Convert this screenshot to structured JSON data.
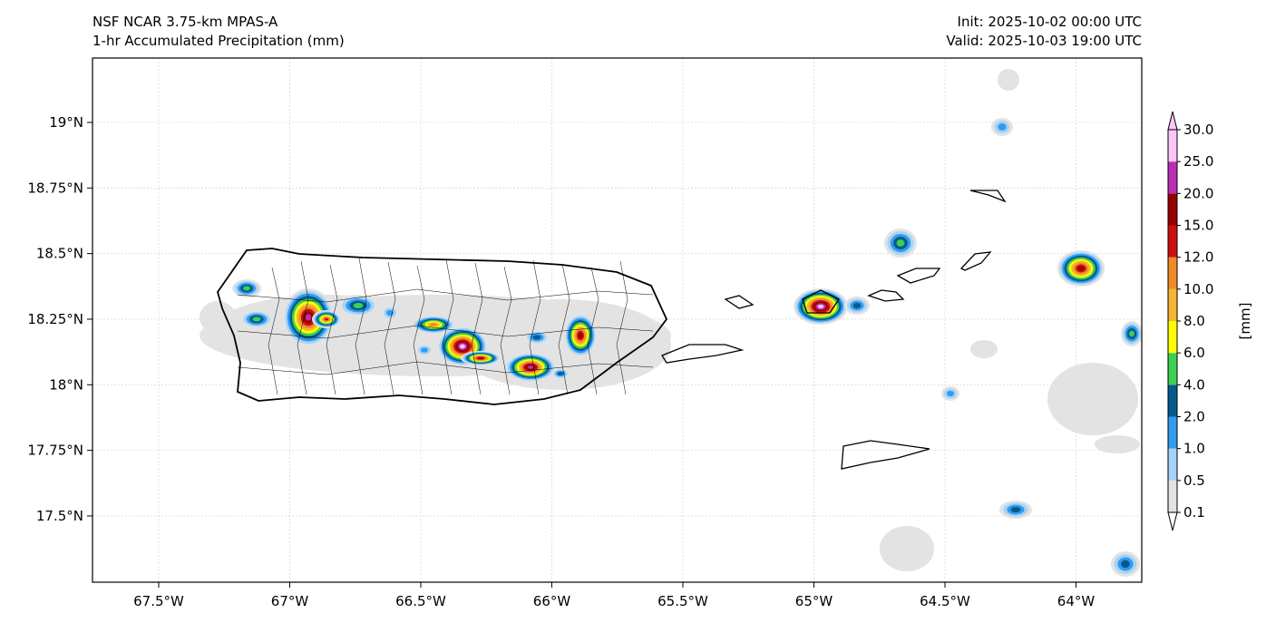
{
  "title_left": {
    "line1": "NSF NCAR 3.75-km MPAS-A",
    "line2": "1-hr Accumulated Precipitation (mm)"
  },
  "title_right": {
    "line1": "Init: 2025-10-02 00:00 UTC",
    "line2": "Valid: 2025-10-03 19:00 UTC"
  },
  "map": {
    "lon_ticks": [
      -67.5,
      -67,
      -66.5,
      -66,
      -65.5,
      -65,
      -64.5,
      -64
    ],
    "lon_labels": [
      "67.5°W",
      "67°W",
      "66.5°W",
      "66°W",
      "65.5°W",
      "65°W",
      "64.5°W",
      "64°W"
    ],
    "lat_ticks": [
      19,
      18.75,
      18.5,
      18.25,
      18,
      17.75,
      17.5
    ],
    "lat_labels": [
      "19°N",
      "18.75°N",
      "18.5°N",
      "18.25°N",
      "18°N",
      "17.75°N",
      "17.5°N"
    ]
  },
  "colorbar": {
    "unit_label": "[mm]",
    "levels": [
      "0.1",
      "0.5",
      "1.0",
      "2.0",
      "4.0",
      "6.0",
      "8.0",
      "10.0",
      "12.0",
      "15.0",
      "20.0",
      "25.0",
      "30.0"
    ],
    "colors": [
      "#e3e3e3",
      "#a6d3f7",
      "#2f9cf0",
      "#045a8c",
      "#3ecf52",
      "#ffff00",
      "#f5b731",
      "#ef8a26",
      "#cc0f0f",
      "#950000",
      "#b92fb6",
      "#fbc6f6"
    ]
  }
}
